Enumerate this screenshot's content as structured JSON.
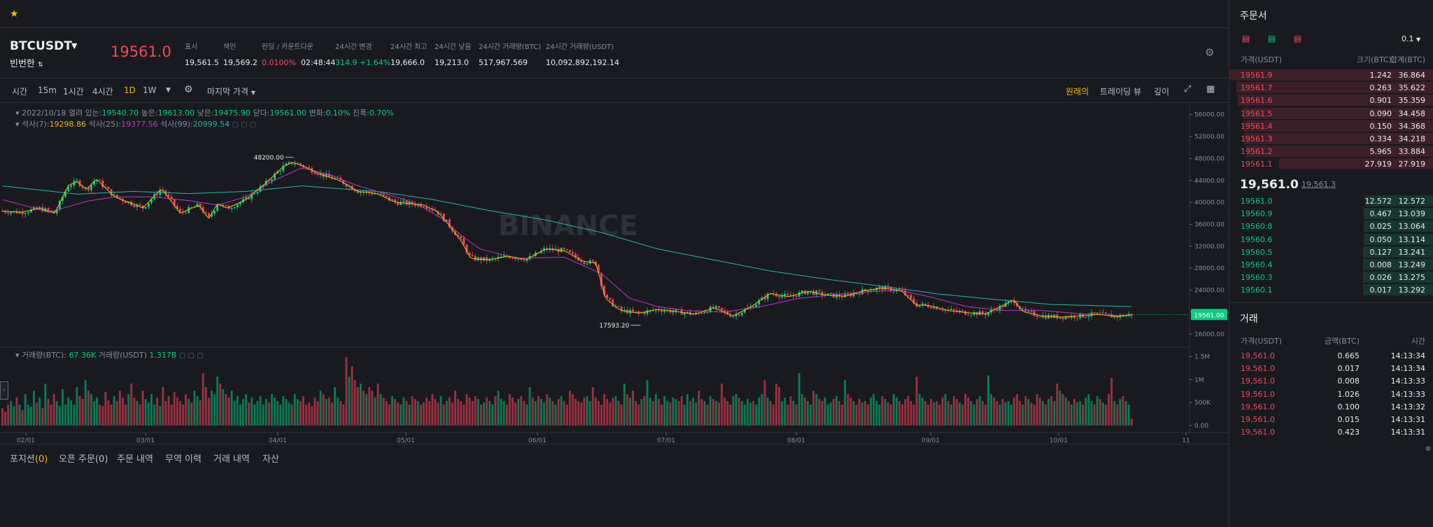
{
  "topbar": {
    "star": "★"
  },
  "ticker": {
    "symbol": "BTCUSDT",
    "symbol_sub": "빈번한",
    "symbol_sub_icon": "⇅",
    "last_price": "19561.0",
    "stats": [
      {
        "label": "표시",
        "value": "19,561.5"
      },
      {
        "label": "색인",
        "value": "19,569.2"
      },
      {
        "label": "펀딩 / 카운트다운",
        "value": "0.0100%",
        "value2": "02:48:44"
      },
      {
        "label": "24시간 변경",
        "value": "314.9 +1.64%"
      },
      {
        "label": "24시간 최고",
        "value": "19,666.0"
      },
      {
        "label": "24시간 낮음",
        "value": "19,213.0"
      },
      {
        "label": "24시간 거래량(BTC)",
        "value": "517,967.569"
      },
      {
        "label": "24시간 거래량(USDT)",
        "value": "10,092,892,192.14"
      }
    ]
  },
  "toolbar": {
    "timeframes": [
      "시간",
      "15m",
      "1시간",
      "4시간",
      "1D",
      "1W"
    ],
    "active_tf": "1D",
    "price_type": "마지막 가격",
    "views": [
      "원래의",
      "트레이딩 뷰",
      "깊이"
    ],
    "active_view": "원래의"
  },
  "chart_data": {
    "type": "candlestick",
    "watermark": "BINANCE",
    "ohlc_legend": {
      "date": "2022/10/18",
      "open_label": "열려 있는:",
      "open": "19540.70",
      "high_label": "높은:",
      "high": "19613.00",
      "low_label": "낮은:",
      "low": "19475.90",
      "close_label": "닫다:",
      "close": "19561.00",
      "change_label": "변화:",
      "change": "0.10%",
      "amp_label": "진폭:",
      "amp": "0.70%"
    },
    "ma_legend": {
      "ma7_label": "석사(7):",
      "ma7": "19298.86",
      "ma25_label": "석사(25):",
      "ma25": "19377.56",
      "ma99_label": "석사(99):",
      "ma99": "20999.54"
    },
    "vol_legend": {
      "btc_label": "거래량(BTC):",
      "btc": "67.36K",
      "usdt_label": "거래량(USDT)",
      "usdt": "1.317B"
    },
    "y_ticks": [
      "56000.00",
      "52000.00",
      "48000.00",
      "44000.00",
      "40000.00",
      "36000.00",
      "32000.00",
      "28000.00",
      "24000.00",
      "20000.00",
      "16000.00"
    ],
    "y_min": 14000,
    "y_max": 58000,
    "vol_ticks": [
      "1.5M",
      "1M",
      "500K",
      "0.00"
    ],
    "x_ticks": [
      "02/01",
      "03/01",
      "04/01",
      "05/01",
      "06/01",
      "07/01",
      "08/01",
      "09/01",
      "10/01",
      "11"
    ],
    "high_annotation": "48200.00",
    "low_annotation": "17593.20",
    "current_price_label": "19561.00",
    "close_path": [
      [
        0,
        38400
      ],
      [
        10,
        38200
      ],
      [
        20,
        38900
      ],
      [
        28,
        38000
      ],
      [
        35,
        43000
      ],
      [
        40,
        43800
      ],
      [
        45,
        42300
      ],
      [
        50,
        44300
      ],
      [
        60,
        41000
      ],
      [
        75,
        39000
      ],
      [
        85,
        42500
      ],
      [
        95,
        38000
      ],
      [
        105,
        39500
      ],
      [
        110,
        37000
      ],
      [
        115,
        39800
      ],
      [
        120,
        38900
      ],
      [
        130,
        40500
      ],
      [
        140,
        43300
      ],
      [
        150,
        46500
      ],
      [
        155,
        47300
      ],
      [
        160,
        46700
      ],
      [
        170,
        45100
      ],
      [
        180,
        44000
      ],
      [
        190,
        42000
      ],
      [
        200,
        41600
      ],
      [
        210,
        40000
      ],
      [
        220,
        39700
      ],
      [
        225,
        39500
      ],
      [
        232,
        38400
      ],
      [
        237,
        36500
      ],
      [
        245,
        33000
      ],
      [
        250,
        29800
      ],
      [
        260,
        29500
      ],
      [
        270,
        30200
      ],
      [
        280,
        29600
      ],
      [
        290,
        31500
      ],
      [
        300,
        31200
      ],
      [
        310,
        29300
      ],
      [
        317,
        28900
      ],
      [
        322,
        22500
      ],
      [
        330,
        20300
      ],
      [
        340,
        19800
      ],
      [
        350,
        20500
      ],
      [
        360,
        20100
      ],
      [
        370,
        19600
      ],
      [
        380,
        20800
      ],
      [
        390,
        19300
      ],
      [
        400,
        21000
      ],
      [
        410,
        23400
      ],
      [
        420,
        22800
      ],
      [
        430,
        23800
      ],
      [
        440,
        23100
      ],
      [
        450,
        22900
      ],
      [
        460,
        23900
      ],
      [
        470,
        24400
      ],
      [
        480,
        23900
      ],
      [
        488,
        21300
      ],
      [
        495,
        21200
      ],
      [
        505,
        20300
      ],
      [
        515,
        19900
      ],
      [
        525,
        19700
      ],
      [
        535,
        21300
      ],
      [
        540,
        22200
      ],
      [
        545,
        20100
      ],
      [
        555,
        19300
      ],
      [
        565,
        19100
      ],
      [
        575,
        19300
      ],
      [
        585,
        19600
      ],
      [
        595,
        19200
      ],
      [
        603,
        19561
      ]
    ],
    "ma25_path": [
      [
        0,
        40500
      ],
      [
        25,
        38200
      ],
      [
        45,
        40200
      ],
      [
        60,
        41000
      ],
      [
        80,
        41000
      ],
      [
        100,
        40300
      ],
      [
        115,
        39500
      ],
      [
        130,
        41000
      ],
      [
        145,
        44000
      ],
      [
        160,
        46300
      ],
      [
        175,
        45000
      ],
      [
        190,
        43000
      ],
      [
        205,
        41500
      ],
      [
        215,
        40500
      ],
      [
        225,
        39000
      ],
      [
        235,
        37000
      ],
      [
        245,
        34000
      ],
      [
        255,
        31500
      ],
      [
        275,
        29800
      ],
      [
        300,
        30000
      ],
      [
        320,
        27000
      ],
      [
        335,
        22500
      ],
      [
        350,
        21000
      ],
      [
        365,
        20300
      ],
      [
        385,
        20000
      ],
      [
        405,
        21000
      ],
      [
        425,
        22500
      ],
      [
        445,
        23200
      ],
      [
        465,
        23800
      ],
      [
        480,
        23900
      ],
      [
        495,
        22800
      ],
      [
        515,
        21000
      ],
      [
        535,
        20300
      ],
      [
        555,
        20300
      ],
      [
        575,
        19700
      ],
      [
        595,
        19400
      ],
      [
        603,
        19377
      ]
    ],
    "ma99_path": [
      [
        0,
        43000
      ],
      [
        40,
        41500
      ],
      [
        70,
        42000
      ],
      [
        100,
        41600
      ],
      [
        130,
        42000
      ],
      [
        160,
        43000
      ],
      [
        200,
        42000
      ],
      [
        230,
        40500
      ],
      [
        260,
        38500
      ],
      [
        290,
        36800
      ],
      [
        320,
        34500
      ],
      [
        350,
        31500
      ],
      [
        380,
        29500
      ],
      [
        410,
        27500
      ],
      [
        440,
        26000
      ],
      [
        470,
        24700
      ],
      [
        500,
        23300
      ],
      [
        530,
        22300
      ],
      [
        560,
        21400
      ],
      [
        603,
        20999
      ]
    ],
    "volume_profile": [
      0.25,
      0.2,
      0.3,
      0.35,
      0.28,
      0.4,
      0.3,
      0.22,
      0.45,
      0.3,
      0.27,
      0.5,
      0.33,
      0.4,
      0.25,
      0.6,
      0.38,
      0.3,
      0.45,
      0.35,
      0.28,
      0.52,
      0.3,
      0.4,
      0.36,
      0.3,
      0.55,
      0.42,
      0.38,
      0.65,
      0.5,
      0.45,
      0.35,
      0.4,
      0.3,
      0.28,
      0.48,
      0.36,
      0.3,
      0.42,
      0.35,
      0.5,
      0.4,
      0.3,
      0.45,
      0.6,
      0.4,
      0.35,
      0.3,
      0.5,
      0.38,
      0.33,
      0.45,
      0.3,
      0.4,
      0.28,
      0.55,
      0.35,
      0.42,
      0.3,
      0.48,
      0.4,
      0.35,
      0.3,
      0.45,
      0.38,
      0.33,
      0.5,
      0.42,
      0.36,
      0.75,
      0.55,
      0.4,
      0.5,
      0.45,
      0.7,
      0.6,
      0.52,
      0.45,
      0.4,
      0.5,
      0.35,
      0.42,
      0.3,
      0.38,
      0.45,
      0.33,
      0.4,
      0.3,
      0.35,
      0.42,
      0.3,
      0.38,
      0.33,
      0.45,
      0.4,
      0.35,
      0.3,
      0.42,
      0.38,
      0.33,
      0.3,
      0.45,
      0.38,
      0.35,
      0.42,
      0.3,
      0.33,
      0.28,
      0.4,
      0.35,
      0.5,
      0.45,
      0.38,
      0.4,
      0.33,
      0.55,
      0.4,
      0.35,
      0.3,
      0.98,
      0.7,
      0.85,
      0.65,
      0.55,
      0.6,
      0.5,
      0.45,
      0.55,
      0.5,
      0.4,
      0.6,
      0.45,
      0.4,
      0.35,
      0.3,
      0.42,
      0.38,
      0.33,
      0.3,
      0.4,
      0.35,
      0.3,
      0.42,
      0.38,
      0.35,
      0.3,
      0.33,
      0.4,
      0.35,
      0.45,
      0.38,
      0.33,
      0.42,
      0.3,
      0.35,
      0.4,
      0.33,
      0.5,
      0.38,
      0.35,
      0.3,
      0.45,
      0.4,
      0.35,
      0.42,
      0.38,
      0.3,
      0.33,
      0.4,
      0.35,
      0.3,
      0.42,
      0.5,
      0.38,
      0.35,
      0.3,
      0.45,
      0.4,
      0.33,
      0.38,
      0.42,
      0.35,
      0.3,
      0.55,
      0.4,
      0.35,
      0.42,
      0.38,
      0.33,
      0.45,
      0.4,
      0.35,
      0.3,
      0.38,
      0.42,
      0.35,
      0.3,
      0.5,
      0.45,
      0.38,
      0.35,
      0.33,
      0.4,
      0.42,
      0.35,
      0.55,
      0.4,
      0.35,
      0.3,
      0.45,
      0.38,
      0.33,
      0.4,
      0.42,
      0.35,
      0.3,
      0.6,
      0.45,
      0.4,
      0.5,
      0.35,
      0.3,
      0.38,
      0.42,
      0.65,
      0.4,
      0.35,
      0.45,
      0.38,
      0.3,
      0.42,
      0.35,
      0.33,
      0.4,
      0.38,
      0.35,
      0.42,
      0.3,
      0.45,
      0.35,
      0.4,
      0.33,
      0.5,
      0.38,
      0.35,
      0.3,
      0.42,
      0.38,
      0.35,
      0.33,
      0.6,
      0.4,
      0.35,
      0.3,
      0.42,
      0.45,
      0.4,
      0.35,
      0.3,
      0.38,
      0.33,
      0.35,
      0.3,
      0.4,
      0.45,
      0.65,
      0.4,
      0.35,
      0.3,
      0.6,
      0.55,
      0.35,
      0.4,
      0.3,
      0.42,
      0.35,
      0.3,
      0.75,
      0.45,
      0.4,
      0.35,
      0.3,
      0.5,
      0.45,
      0.38,
      0.35,
      0.4,
      0.3,
      0.33,
      0.38,
      0.42,
      0.35,
      0.3,
      0.65,
      0.45,
      0.4,
      0.35,
      0.3,
      0.38,
      0.33,
      0.35,
      0.3,
      0.4,
      0.45,
      0.35,
      0.3,
      0.42,
      0.38,
      0.33,
      0.3,
      0.45,
      0.4,
      0.35,
      0.3,
      0.38,
      0.42,
      0.35,
      0.3,
      0.7,
      0.45,
      0.4,
      0.35,
      0.3,
      0.38,
      0.33,
      0.35,
      0.3,
      0.4,
      0.45,
      0.35,
      0.3,
      0.42,
      0.38,
      0.33,
      0.3,
      0.45,
      0.4,
      0.35,
      0.3,
      0.38,
      0.42,
      0.35,
      0.3,
      0.72,
      0.45,
      0.4,
      0.35,
      0.3,
      0.38,
      0.33,
      0.35,
      0.3,
      0.4,
      0.45,
      0.35,
      0.3,
      0.42,
      0.38,
      0.33,
      0.3,
      0.45,
      0.4,
      0.35,
      0.3,
      0.38,
      0.42,
      0.35,
      0.6,
      0.5,
      0.45,
      0.4,
      0.35,
      0.3,
      0.38,
      0.33,
      0.35,
      0.3,
      0.4,
      0.45,
      0.35,
      0.3,
      0.42,
      0.38,
      0.33,
      0.3,
      0.45,
      0.68,
      0.35,
      0.3,
      0.38,
      0.42,
      0.35,
      0.3,
      0.1
    ]
  },
  "bottom_tabs": [
    {
      "label": "포지션",
      "count": "(0)"
    },
    {
      "label": "오픈 주문",
      "count": "(0)"
    },
    {
      "label": "주문 내역",
      "count": ""
    },
    {
      "label": "무역 이력",
      "count": ""
    },
    {
      "label": "거래 내역",
      "count": ""
    },
    {
      "label": "자산",
      "count": ""
    }
  ],
  "orderbook": {
    "title": "주문서",
    "precision": "0.1",
    "headers": [
      "가격(USDT)",
      "크기(BTC)",
      "합계(BTC)"
    ],
    "asks": [
      [
        "19561.9",
        "1.242",
        "36.864"
      ],
      [
        "19561.7",
        "0.263",
        "35.622"
      ],
      [
        "19561.6",
        "0.901",
        "35.359"
      ],
      [
        "19561.5",
        "0.090",
        "34.458"
      ],
      [
        "19561.4",
        "0.150",
        "34.368"
      ],
      [
        "19561.3",
        "0.334",
        "34.218"
      ],
      [
        "19561.2",
        "5.965",
        "33.884"
      ],
      [
        "19561.1",
        "27.919",
        "27.919"
      ]
    ],
    "mid_price": "19,561.0",
    "mark_price": "19,561.3",
    "bids": [
      [
        "19561.0",
        "12.572",
        "12.572"
      ],
      [
        "19560.9",
        "0.467",
        "13.039"
      ],
      [
        "19560.8",
        "0.025",
        "13.064"
      ],
      [
        "19560.6",
        "0.050",
        "13.114"
      ],
      [
        "19560.5",
        "0.127",
        "13.241"
      ],
      [
        "19560.4",
        "0.008",
        "13.249"
      ],
      [
        "19560.3",
        "0.026",
        "13.275"
      ],
      [
        "19560.1",
        "0.017",
        "13.292"
      ]
    ]
  },
  "trades": {
    "title": "거래",
    "headers": [
      "가격(USDT)",
      "금액(BTC)",
      "시간"
    ],
    "rows": [
      [
        "19,561.0",
        "0.665",
        "14:13:34"
      ],
      [
        "19,561.0",
        "0.017",
        "14:13:34"
      ],
      [
        "19,561.0",
        "0.008",
        "14:13:33"
      ],
      [
        "19,561.0",
        "1.026",
        "14:13:33"
      ],
      [
        "19,561.0",
        "0.100",
        "14:13:32"
      ],
      [
        "19,561.0",
        "0.015",
        "14:13:31"
      ],
      [
        "19,561.0",
        "0.423",
        "14:13:31"
      ]
    ]
  },
  "colors": {
    "up": "#0ecb81",
    "down": "#f6465d",
    "ma7": "#f0b90b",
    "ma25": "#c037c8",
    "ma99": "#29b6a6",
    "accent": "#f0b90b"
  }
}
